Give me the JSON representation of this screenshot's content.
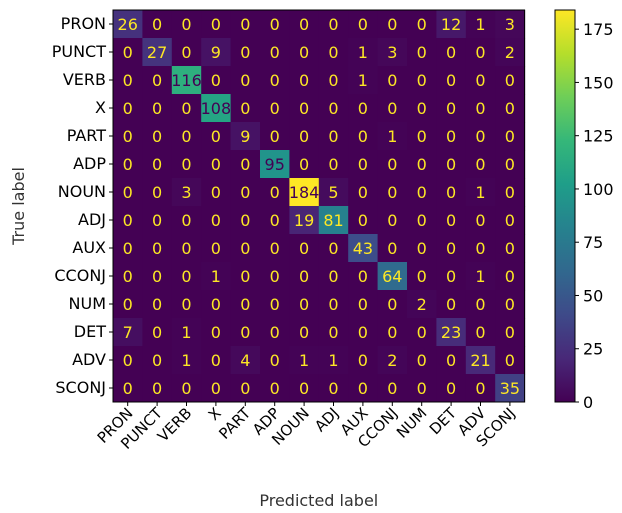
{
  "chart_data": {
    "type": "heatmap",
    "title": "",
    "xlabel": "Predicted label",
    "ylabel": "True label",
    "labels": [
      "PRON",
      "PUNCT",
      "VERB",
      "X",
      "PART",
      "ADP",
      "NOUN",
      "ADJ",
      "AUX",
      "CCONJ",
      "NUM",
      "DET",
      "ADV",
      "SCONJ"
    ],
    "matrix": [
      [
        26,
        0,
        0,
        0,
        0,
        0,
        0,
        0,
        0,
        0,
        0,
        12,
        1,
        3
      ],
      [
        0,
        27,
        0,
        9,
        0,
        0,
        0,
        0,
        1,
        3,
        0,
        0,
        0,
        2
      ],
      [
        0,
        0,
        116,
        0,
        0,
        0,
        0,
        0,
        1,
        0,
        0,
        0,
        0,
        0
      ],
      [
        0,
        0,
        0,
        108,
        0,
        0,
        0,
        0,
        0,
        0,
        0,
        0,
        0,
        0
      ],
      [
        0,
        0,
        0,
        0,
        9,
        0,
        0,
        0,
        0,
        1,
        0,
        0,
        0,
        0
      ],
      [
        0,
        0,
        0,
        0,
        0,
        95,
        0,
        0,
        0,
        0,
        0,
        0,
        0,
        0
      ],
      [
        0,
        0,
        3,
        0,
        0,
        0,
        184,
        5,
        0,
        0,
        0,
        0,
        1,
        0
      ],
      [
        0,
        0,
        0,
        0,
        0,
        0,
        19,
        81,
        0,
        0,
        0,
        0,
        0,
        0
      ],
      [
        0,
        0,
        0,
        0,
        0,
        0,
        0,
        0,
        43,
        0,
        0,
        0,
        0,
        0
      ],
      [
        0,
        0,
        0,
        1,
        0,
        0,
        0,
        0,
        0,
        64,
        0,
        0,
        1,
        0
      ],
      [
        0,
        0,
        0,
        0,
        0,
        0,
        0,
        0,
        0,
        0,
        2,
        0,
        0,
        0
      ],
      [
        7,
        0,
        1,
        0,
        0,
        0,
        0,
        0,
        0,
        0,
        0,
        23,
        0,
        0
      ],
      [
        0,
        0,
        1,
        0,
        4,
        0,
        1,
        1,
        0,
        2,
        0,
        0,
        21,
        0
      ],
      [
        0,
        0,
        0,
        0,
        0,
        0,
        0,
        0,
        0,
        0,
        0,
        0,
        0,
        35
      ]
    ],
    "colormap": "viridis",
    "colorbar": {
      "min": 0,
      "max": 184,
      "ticks": [
        0,
        25,
        50,
        75,
        100,
        125,
        150,
        175
      ]
    },
    "text_colors": {
      "on_dark": "#fde725",
      "on_light": "#440154"
    }
  }
}
